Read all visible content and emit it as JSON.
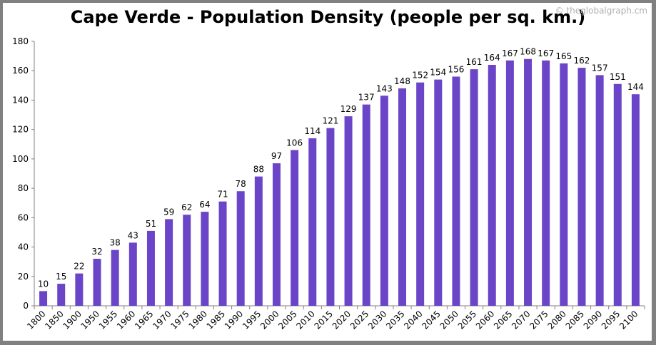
{
  "chart_data": {
    "type": "bar",
    "title": "Cape Verde - Population Density (people per sq. km.)",
    "watermark": "© theglobalgraph.cm",
    "xlabel": "",
    "ylabel": "",
    "ylim": [
      0,
      180
    ],
    "yticks": [
      0,
      20,
      40,
      60,
      80,
      100,
      120,
      140,
      160,
      180
    ],
    "grid": false,
    "bar_color": "#6a45c8",
    "categories": [
      "1800",
      "1850",
      "1900",
      "1950",
      "1955",
      "1960",
      "1965",
      "1970",
      "1975",
      "1980",
      "1985",
      "1990",
      "1995",
      "2000",
      "2005",
      "2010",
      "2015",
      "2020",
      "2025",
      "2030",
      "2035",
      "2040",
      "2045",
      "2050",
      "2055",
      "2060",
      "2065",
      "2070",
      "2075",
      "2080",
      "2085",
      "2090",
      "2095",
      "2100"
    ],
    "values": [
      10,
      15,
      22,
      32,
      38,
      43,
      51,
      59,
      62,
      64,
      71,
      78,
      88,
      97,
      106,
      114,
      121,
      129,
      137,
      143,
      148,
      152,
      154,
      156,
      161,
      164,
      167,
      168,
      167,
      165,
      162,
      157,
      151,
      144
    ]
  }
}
